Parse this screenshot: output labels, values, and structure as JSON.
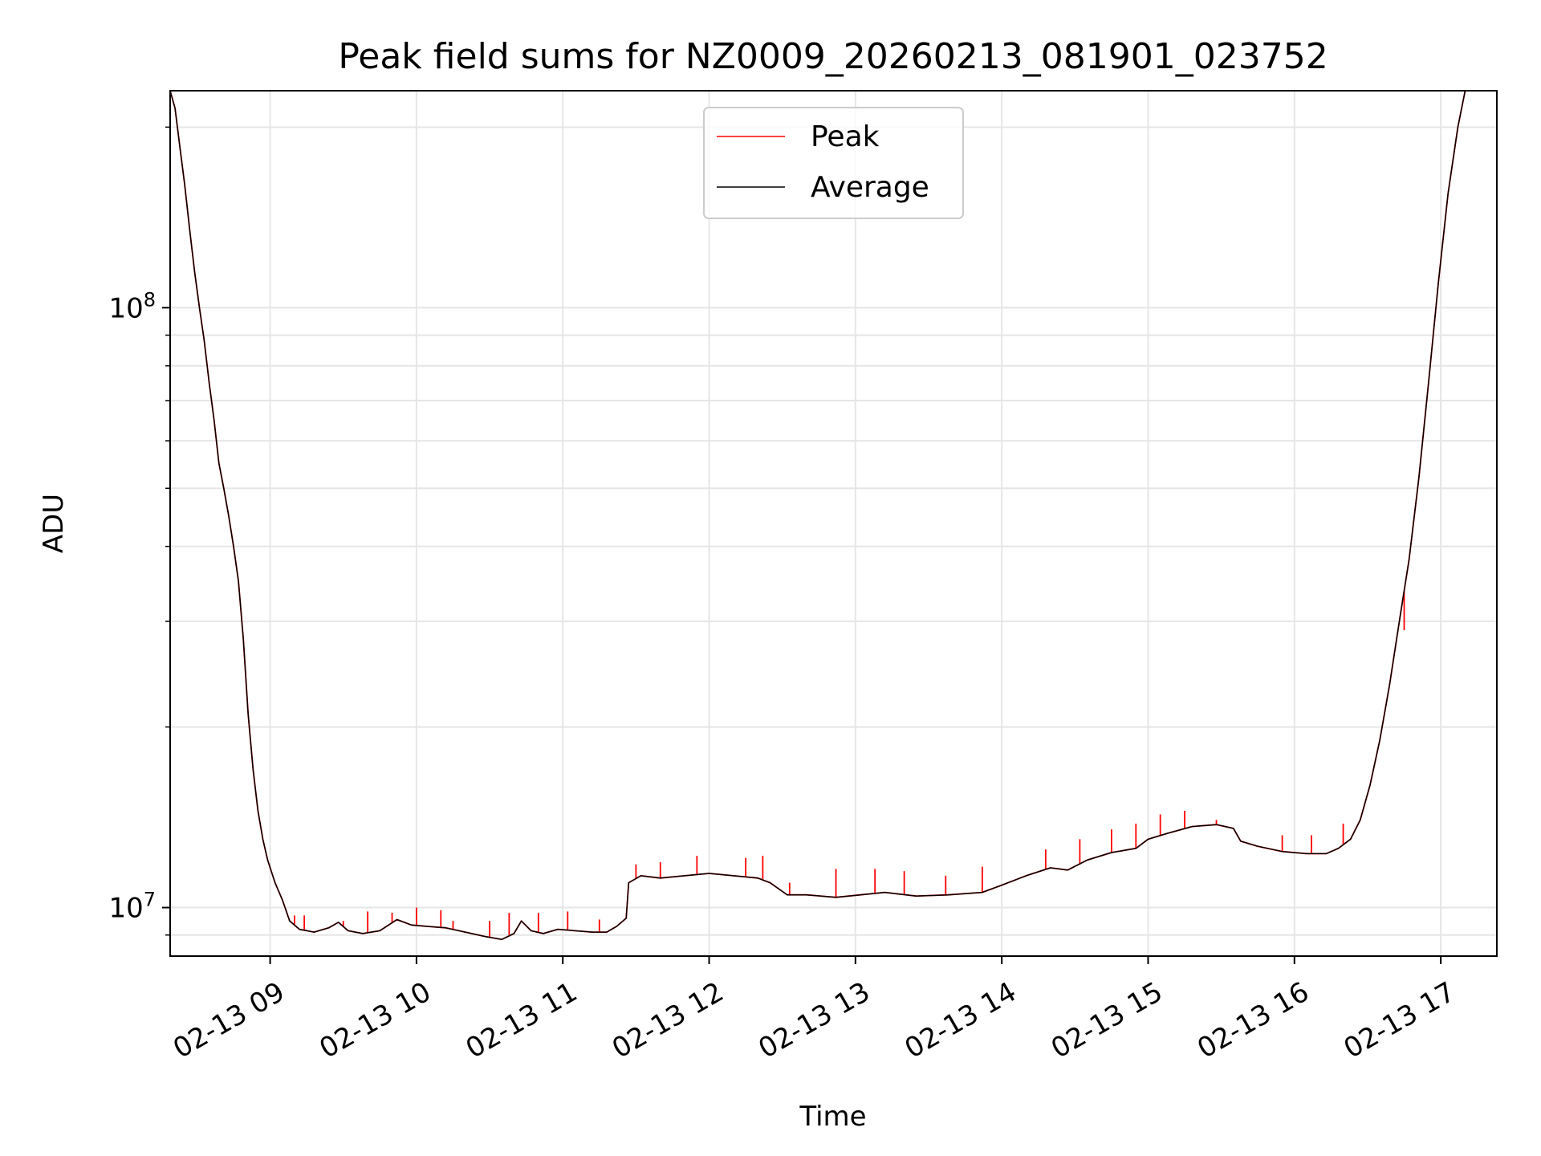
{
  "chart_data": {
    "type": "line",
    "title": "Peak field sums for NZ0009_20260213_081901_023752",
    "xlabel": "Time",
    "ylabel": "ADU",
    "y_scale": "log",
    "x_range": [
      "2026-02-13 08:19",
      "2026-02-13 17:23"
    ],
    "ylim": [
      8300000,
      230000000
    ],
    "grid": true,
    "legend_position": "top-center",
    "x_ticks": [
      {
        "t": "2026-02-13 09:00",
        "label": "02-13 09"
      },
      {
        "t": "2026-02-13 10:00",
        "label": "02-13 10"
      },
      {
        "t": "2026-02-13 11:00",
        "label": "02-13 11"
      },
      {
        "t": "2026-02-13 12:00",
        "label": "02-13 12"
      },
      {
        "t": "2026-02-13 13:00",
        "label": "02-13 13"
      },
      {
        "t": "2026-02-13 14:00",
        "label": "02-13 14"
      },
      {
        "t": "2026-02-13 15:00",
        "label": "02-13 15"
      },
      {
        "t": "2026-02-13 16:00",
        "label": "02-13 16"
      },
      {
        "t": "2026-02-13 17:00",
        "label": "02-13 17"
      }
    ],
    "y_major_ticks": [
      {
        "value": 10000000,
        "base": "10",
        "exp": "7"
      },
      {
        "value": 100000000,
        "base": "10",
        "exp": "8"
      }
    ],
    "y_minor_ticks": [
      9000000,
      20000000,
      30000000,
      40000000,
      50000000,
      60000000,
      70000000,
      80000000,
      90000000,
      200000000
    ],
    "series": [
      {
        "name": "Average",
        "color": "#000000",
        "points": [
          [
            "2026-02-13 08:19",
            230000000
          ],
          [
            "2026-02-13 08:21",
            215000000
          ],
          [
            "2026-02-13 08:23",
            185000000
          ],
          [
            "2026-02-13 08:25",
            160000000
          ],
          [
            "2026-02-13 08:27",
            135000000
          ],
          [
            "2026-02-13 08:29",
            115000000
          ],
          [
            "2026-02-13 08:31",
            100000000
          ],
          [
            "2026-02-13 08:33",
            88000000
          ],
          [
            "2026-02-13 08:35",
            75000000
          ],
          [
            "2026-02-13 08:37",
            65000000
          ],
          [
            "2026-02-13 08:39",
            55000000
          ],
          [
            "2026-02-13 08:41",
            50000000
          ],
          [
            "2026-02-13 08:43",
            45000000
          ],
          [
            "2026-02-13 08:45",
            40000000
          ],
          [
            "2026-02-13 08:47",
            35000000
          ],
          [
            "2026-02-13 08:49",
            28000000
          ],
          [
            "2026-02-13 08:51",
            21000000
          ],
          [
            "2026-02-13 08:53",
            17000000
          ],
          [
            "2026-02-13 08:55",
            14500000
          ],
          [
            "2026-02-13 08:57",
            13000000
          ],
          [
            "2026-02-13 08:59",
            12000000
          ],
          [
            "2026-02-13 09:02",
            11000000
          ],
          [
            "2026-02-13 09:05",
            10300000
          ],
          [
            "2026-02-13 09:08",
            9500000
          ],
          [
            "2026-02-13 09:12",
            9200000
          ],
          [
            "2026-02-13 09:18",
            9100000
          ],
          [
            "2026-02-13 09:24",
            9250000
          ],
          [
            "2026-02-13 09:28",
            9450000
          ],
          [
            "2026-02-13 09:32",
            9150000
          ],
          [
            "2026-02-13 09:38",
            9050000
          ],
          [
            "2026-02-13 09:45",
            9150000
          ],
          [
            "2026-02-13 09:52",
            9550000
          ],
          [
            "2026-02-13 09:58",
            9350000
          ],
          [
            "2026-02-13 10:05",
            9300000
          ],
          [
            "2026-02-13 10:12",
            9250000
          ],
          [
            "2026-02-13 10:20",
            9100000
          ],
          [
            "2026-02-13 10:28",
            8950000
          ],
          [
            "2026-02-13 10:35",
            8850000
          ],
          [
            "2026-02-13 10:40",
            9050000
          ],
          [
            "2026-02-13 10:43",
            9500000
          ],
          [
            "2026-02-13 10:47",
            9150000
          ],
          [
            "2026-02-13 10:52",
            9050000
          ],
          [
            "2026-02-13 10:58",
            9200000
          ],
          [
            "2026-02-13 11:05",
            9150000
          ],
          [
            "2026-02-13 11:12",
            9100000
          ],
          [
            "2026-02-13 11:18",
            9100000
          ],
          [
            "2026-02-13 11:22",
            9300000
          ],
          [
            "2026-02-13 11:26",
            9600000
          ],
          [
            "2026-02-13 11:27",
            11000000
          ],
          [
            "2026-02-13 11:32",
            11300000
          ],
          [
            "2026-02-13 11:40",
            11200000
          ],
          [
            "2026-02-13 11:50",
            11300000
          ],
          [
            "2026-02-13 12:00",
            11400000
          ],
          [
            "2026-02-13 12:10",
            11300000
          ],
          [
            "2026-02-13 12:20",
            11200000
          ],
          [
            "2026-02-13 12:25",
            11000000
          ],
          [
            "2026-02-13 12:32",
            10500000
          ],
          [
            "2026-02-13 12:40",
            10500000
          ],
          [
            "2026-02-13 12:52",
            10400000
          ],
          [
            "2026-02-13 13:02",
            10500000
          ],
          [
            "2026-02-13 13:12",
            10600000
          ],
          [
            "2026-02-13 13:25",
            10450000
          ],
          [
            "2026-02-13 13:38",
            10500000
          ],
          [
            "2026-02-13 13:52",
            10600000
          ],
          [
            "2026-02-13 14:00",
            10900000
          ],
          [
            "2026-02-13 14:10",
            11300000
          ],
          [
            "2026-02-13 14:20",
            11650000
          ],
          [
            "2026-02-13 14:27",
            11550000
          ],
          [
            "2026-02-13 14:35",
            12000000
          ],
          [
            "2026-02-13 14:45",
            12350000
          ],
          [
            "2026-02-13 14:55",
            12550000
          ],
          [
            "2026-02-13 15:00",
            13000000
          ],
          [
            "2026-02-13 15:08",
            13300000
          ],
          [
            "2026-02-13 15:18",
            13650000
          ],
          [
            "2026-02-13 15:28",
            13750000
          ],
          [
            "2026-02-13 15:35",
            13550000
          ],
          [
            "2026-02-13 15:38",
            12900000
          ],
          [
            "2026-02-13 15:45",
            12650000
          ],
          [
            "2026-02-13 15:55",
            12400000
          ],
          [
            "2026-02-13 16:05",
            12300000
          ],
          [
            "2026-02-13 16:13",
            12300000
          ],
          [
            "2026-02-13 16:18",
            12550000
          ],
          [
            "2026-02-13 16:23",
            13000000
          ],
          [
            "2026-02-13 16:27",
            14000000
          ],
          [
            "2026-02-13 16:31",
            16000000
          ],
          [
            "2026-02-13 16:35",
            19000000
          ],
          [
            "2026-02-13 16:39",
            23500000
          ],
          [
            "2026-02-13 16:43",
            30000000
          ],
          [
            "2026-02-13 16:47",
            38000000
          ],
          [
            "2026-02-13 16:51",
            52000000
          ],
          [
            "2026-02-13 16:55",
            75000000
          ],
          [
            "2026-02-13 16:59",
            110000000
          ],
          [
            "2026-02-13 17:03",
            155000000
          ],
          [
            "2026-02-13 17:07",
            200000000
          ],
          [
            "2026-02-13 17:10",
            230000000
          ]
        ]
      },
      {
        "name": "Peak",
        "color": "#ff0000",
        "spikes": [
          [
            "2026-02-13 09:10",
            9700000
          ],
          [
            "2026-02-13 09:14",
            9700000
          ],
          [
            "2026-02-13 09:30",
            9500000
          ],
          [
            "2026-02-13 09:40",
            9850000
          ],
          [
            "2026-02-13 09:50",
            9800000
          ],
          [
            "2026-02-13 10:00",
            10000000
          ],
          [
            "2026-02-13 10:10",
            9900000
          ],
          [
            "2026-02-13 10:15",
            9500000
          ],
          [
            "2026-02-13 10:30",
            9500000
          ],
          [
            "2026-02-13 10:38",
            9800000
          ],
          [
            "2026-02-13 10:50",
            9800000
          ],
          [
            "2026-02-13 11:02",
            9850000
          ],
          [
            "2026-02-13 11:15",
            9550000
          ],
          [
            "2026-02-13 11:30",
            11800000
          ],
          [
            "2026-02-13 11:40",
            11900000
          ],
          [
            "2026-02-13 11:55",
            12200000
          ],
          [
            "2026-02-13 12:15",
            12100000
          ],
          [
            "2026-02-13 12:22",
            12200000
          ],
          [
            "2026-02-13 12:33",
            11000000
          ],
          [
            "2026-02-13 12:52",
            11600000
          ],
          [
            "2026-02-13 13:08",
            11600000
          ],
          [
            "2026-02-13 13:20",
            11500000
          ],
          [
            "2026-02-13 13:37",
            11300000
          ],
          [
            "2026-02-13 13:52",
            11700000
          ],
          [
            "2026-02-13 14:18",
            12500000
          ],
          [
            "2026-02-13 14:32",
            13000000
          ],
          [
            "2026-02-13 14:45",
            13500000
          ],
          [
            "2026-02-13 14:55",
            13800000
          ],
          [
            "2026-02-13 15:05",
            14300000
          ],
          [
            "2026-02-13 15:15",
            14500000
          ],
          [
            "2026-02-13 15:28",
            14000000
          ],
          [
            "2026-02-13 15:55",
            13200000
          ],
          [
            "2026-02-13 16:07",
            13200000
          ],
          [
            "2026-02-13 16:20",
            13800000
          ],
          [
            "2026-02-13 16:45",
            29000000
          ]
        ]
      }
    ]
  }
}
